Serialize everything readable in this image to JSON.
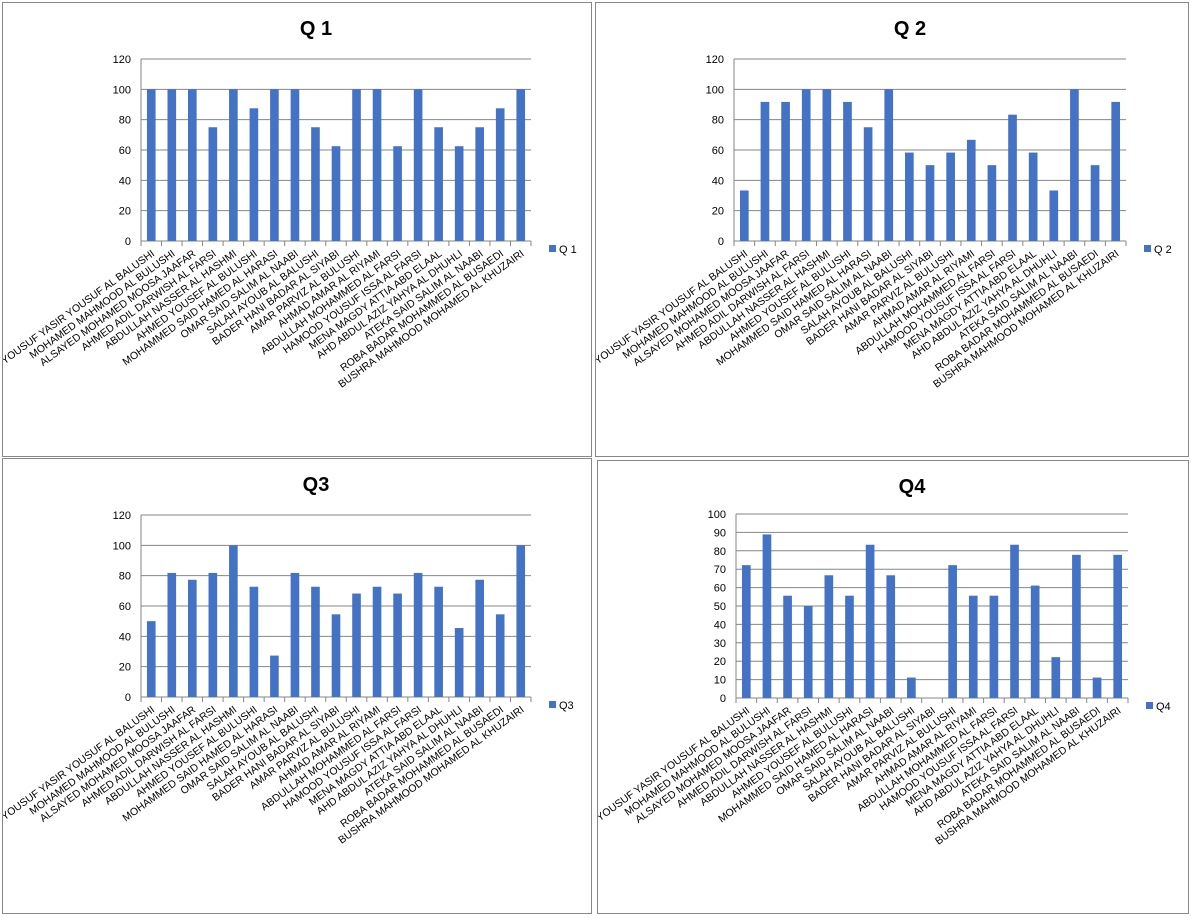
{
  "categories": [
    "YOUSUF YASIR YOUSUF AL BALUSHI",
    "MOHAMED MAHMOOD AL BULUSHI",
    "ALSAYED MOHAMED  MOOSA JAAFAR",
    "AHMED ADIL DARWISH  AL FARSI",
    "ABDULLAH NASSER AL HASHMI",
    "AHMED YOUSEF  AL BULUSHI",
    "MOHAMMED SAID HAMED AL HARASI",
    "OMAR SAID SALIM AL NAABI",
    "SALAH AYOUB  AL BALUSHI",
    "BADER HANI BADAR  AL SIYABI",
    "AMAR PARVIZ  AL BULUSHI",
    "AHMAD AMAR  AL RIYAMI",
    "ABDULLAH MOHAMMED AL FARSI",
    "HAMOOD YOUSUF ISSA AL FARSI",
    "MENA MAGDY ATTIA ABD ELAAL",
    "AHD ABDUL AZIZ  YAHYA  AL DHUHLI",
    "ATEKA SAID SALIM AL NAABI",
    "ROBA BADAR MOHAMMED AL BUSAEDI",
    "BUSHRA MAHMOOD MOHAMED AL KHUZAIRI"
  ],
  "colors": {
    "bar": "#4472C4",
    "grid": "#868686"
  },
  "chart_data": [
    {
      "type": "bar",
      "title": "Q 1",
      "legend": "Q 1",
      "legend_position": "right",
      "ylim": [
        0,
        120
      ],
      "ystep": 20,
      "grid": true,
      "values": [
        100,
        100,
        100,
        75,
        100,
        87.5,
        100,
        100,
        75,
        62.5,
        100,
        100,
        62.5,
        100,
        75,
        62.5,
        75,
        87.5,
        100
      ]
    },
    {
      "type": "bar",
      "title": "Q 2",
      "legend": "Q 2",
      "legend_position": "right",
      "ylim": [
        0,
        120
      ],
      "ystep": 20,
      "grid": true,
      "values": [
        33.3,
        91.7,
        91.7,
        100,
        100,
        91.7,
        75,
        100,
        58.3,
        50,
        58.3,
        66.7,
        50,
        83.3,
        58.3,
        33.3,
        100,
        50,
        91.7
      ]
    },
    {
      "type": "bar",
      "title": "Q3",
      "legend": "Q3",
      "legend_position": "right",
      "ylim": [
        0,
        120
      ],
      "ystep": 20,
      "grid": true,
      "values": [
        50,
        81.8,
        77.3,
        81.8,
        100,
        72.7,
        27.3,
        81.8,
        72.7,
        54.5,
        68.2,
        72.7,
        68.2,
        81.8,
        72.7,
        45.5,
        77.3,
        54.5,
        100
      ]
    },
    {
      "type": "bar",
      "title": "Q4",
      "legend": "Q4",
      "legend_position": "right",
      "ylim": [
        0,
        100
      ],
      "ystep": 10,
      "grid": true,
      "values": [
        72.2,
        88.9,
        55.6,
        50,
        66.7,
        55.6,
        83.3,
        66.7,
        11.1,
        0,
        72.2,
        55.6,
        55.6,
        83.3,
        61.1,
        22.2,
        77.8,
        11.1,
        77.8
      ]
    }
  ]
}
